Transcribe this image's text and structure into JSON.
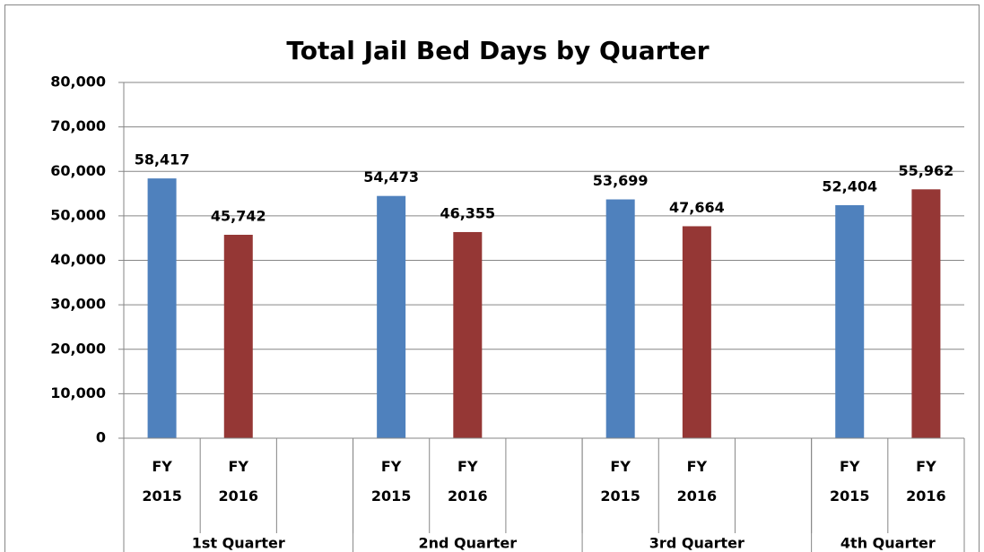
{
  "chart_data": {
    "type": "bar",
    "title": "Total Jail Bed Days by Quarter",
    "categories": [
      "FY 2015",
      "FY 2016",
      null,
      "FY 2015",
      "FY 2016",
      null,
      "FY 2015",
      "FY 2016",
      null,
      "FY 2015",
      "FY 2016"
    ],
    "groups": [
      {
        "label": "1st Quarter",
        "size": 3
      },
      {
        "label": "2nd Quarter",
        "size": 3
      },
      {
        "label": "3rd Quarter",
        "size": 3
      },
      {
        "label": "4th Quarter",
        "size": 2
      }
    ],
    "series": [
      {
        "color": "#4f81bd",
        "values": [
          58417,
          null,
          null,
          54473,
          null,
          null,
          53699,
          null,
          null,
          52404,
          null
        ],
        "value_labels": [
          "58,417",
          null,
          null,
          "54,473",
          null,
          null,
          "53,699",
          null,
          null,
          "52,404",
          null
        ]
      },
      {
        "color": "#953735",
        "values": [
          null,
          45742,
          null,
          null,
          46355,
          null,
          null,
          47664,
          null,
          null,
          55962
        ],
        "value_labels": [
          null,
          "45,742",
          null,
          null,
          "46,355",
          null,
          null,
          "47,664",
          null,
          null,
          "55,962"
        ]
      }
    ],
    "ylim": [
      0,
      80000
    ],
    "yticks": [
      {
        "value": 0,
        "label": "0"
      },
      {
        "value": 10000,
        "label": "10,000"
      },
      {
        "value": 20000,
        "label": "20,000"
      },
      {
        "value": 30000,
        "label": "30,000"
      },
      {
        "value": 40000,
        "label": "40,000"
      },
      {
        "value": 50000,
        "label": "50,000"
      },
      {
        "value": 60000,
        "label": "60,000"
      },
      {
        "value": 70000,
        "label": "70,000"
      },
      {
        "value": 80000,
        "label": "80,000"
      }
    ],
    "grid": true
  }
}
